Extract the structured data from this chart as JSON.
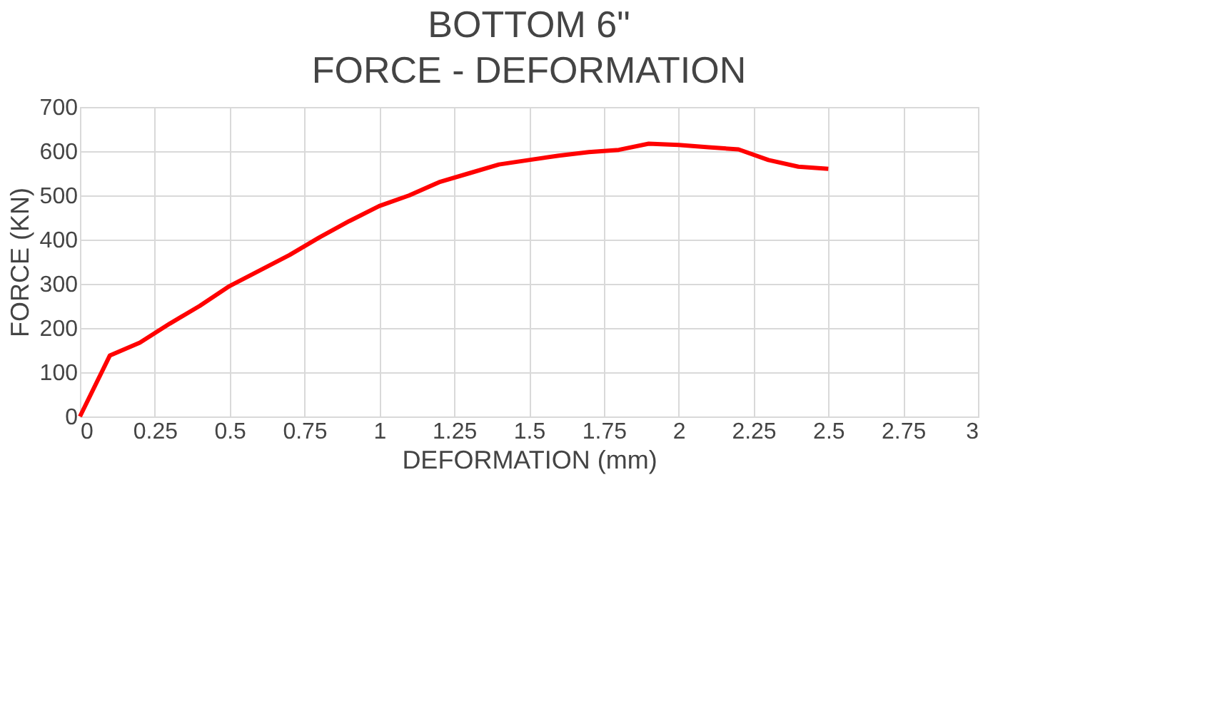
{
  "chart_data": {
    "type": "line",
    "title": "BOTTOM 6\"\nFORCE - DEFORMATION",
    "xlabel": "DEFORMATION (mm)",
    "ylabel": "FORCE (KN)",
    "x": [
      0,
      0.1,
      0.2,
      0.3,
      0.4,
      0.5,
      0.6,
      0.7,
      0.8,
      0.9,
      1.0,
      1.1,
      1.2,
      1.3,
      1.4,
      1.5,
      1.6,
      1.7,
      1.8,
      1.9,
      2.0,
      2.1,
      2.2,
      2.3,
      2.4,
      2.5
    ],
    "series": [
      {
        "color": "#ff0000",
        "values": [
          0,
          138,
          167,
          210,
          250,
          295,
          330,
          365,
          405,
          442,
          476,
          500,
          530,
          550,
          570,
          580,
          590,
          598,
          603,
          617,
          614,
          609,
          604,
          580,
          565,
          560
        ]
      }
    ],
    "xlim": [
      0,
      3
    ],
    "xticks": [
      0,
      0.25,
      0.5,
      0.75,
      1,
      1.25,
      1.5,
      1.75,
      2,
      2.25,
      2.5,
      2.75,
      3
    ],
    "ylim": [
      0,
      700
    ],
    "yticks": [
      0,
      100,
      200,
      300,
      400,
      500,
      600,
      700
    ],
    "grid": true,
    "legend": false,
    "marker": "none",
    "line_style": "solid"
  }
}
